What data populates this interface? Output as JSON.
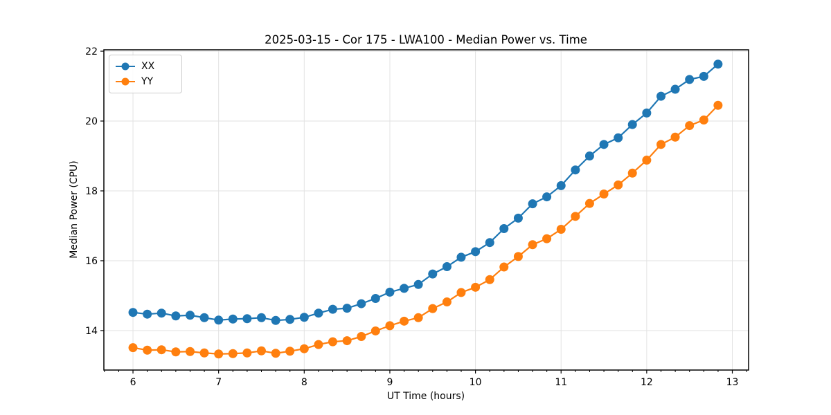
{
  "chart_data": {
    "type": "line",
    "title": "2025-03-15 - Cor 175 - LWA100 - Median Power vs. Time",
    "xlabel": "UT Time (hours)",
    "ylabel": "Median Power (CPU)",
    "xlim": [
      5.66,
      13.19
    ],
    "ylim": [
      12.87,
      22.04
    ],
    "xticks": [
      6,
      7,
      8,
      9,
      10,
      11,
      12,
      13
    ],
    "yticks": [
      14,
      16,
      18,
      20,
      22
    ],
    "x_minor_step": 0.16667,
    "grid": true,
    "grid_color": "#e2e2e2",
    "legend_position": "upper left",
    "x": [
      6.0,
      6.167,
      6.333,
      6.5,
      6.667,
      6.833,
      7.0,
      7.167,
      7.333,
      7.5,
      7.667,
      7.833,
      8.0,
      8.167,
      8.333,
      8.5,
      8.667,
      8.833,
      9.0,
      9.167,
      9.333,
      9.5,
      9.667,
      9.833,
      10.0,
      10.167,
      10.333,
      10.5,
      10.667,
      10.833,
      11.0,
      11.167,
      11.333,
      11.5,
      11.667,
      11.833,
      12.0,
      12.167,
      12.333,
      12.5,
      12.667,
      12.833
    ],
    "series": [
      {
        "name": "XX",
        "color": "#1f77b4",
        "values": [
          14.52,
          14.47,
          14.5,
          14.42,
          14.44,
          14.37,
          14.3,
          14.33,
          14.34,
          14.37,
          14.29,
          14.32,
          14.38,
          14.5,
          14.61,
          14.64,
          14.77,
          14.92,
          15.1,
          15.21,
          15.32,
          15.62,
          15.83,
          16.1,
          16.26,
          16.52,
          16.92,
          17.22,
          17.63,
          17.83,
          18.15,
          18.6,
          19.0,
          19.33,
          19.52,
          19.9,
          20.23,
          20.71,
          20.91,
          21.19,
          21.28,
          21.63
        ]
      },
      {
        "name": "YY",
        "color": "#ff7f0e",
        "values": [
          13.51,
          13.44,
          13.45,
          13.39,
          13.4,
          13.36,
          13.33,
          13.34,
          13.36,
          13.42,
          13.35,
          13.41,
          13.48,
          13.6,
          13.68,
          13.71,
          13.83,
          13.99,
          14.14,
          14.27,
          14.37,
          14.63,
          14.82,
          15.09,
          15.24,
          15.46,
          15.82,
          16.12,
          16.46,
          16.63,
          16.9,
          17.27,
          17.64,
          17.91,
          18.17,
          18.51,
          18.88,
          19.33,
          19.54,
          19.87,
          20.03,
          20.45
        ]
      }
    ]
  }
}
